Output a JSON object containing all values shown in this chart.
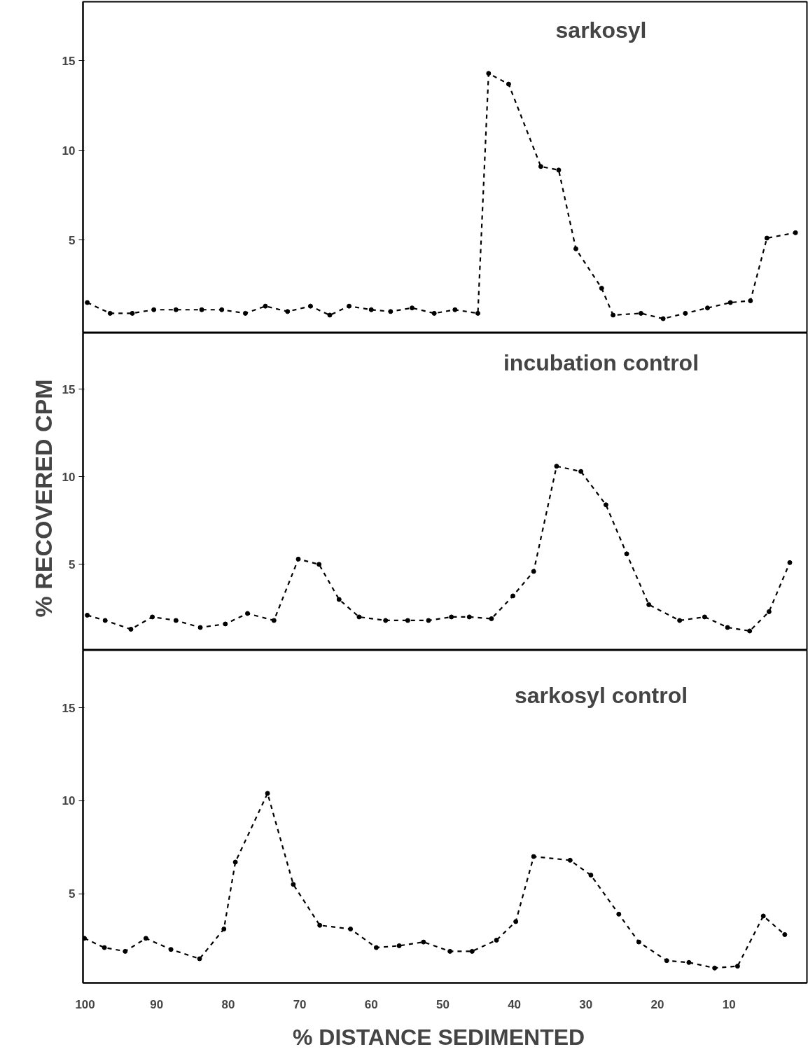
{
  "chart_data": [
    {
      "type": "line",
      "title": "sarkosyl",
      "xlim": [
        100.3,
        -0.9
      ],
      "ylim": [
        -0.2,
        18.3
      ],
      "yticks": [
        5,
        10,
        15
      ],
      "tick_labels": "y",
      "marker": "circle",
      "line_style": "dashed",
      "series": [
        {
          "color": "#000000",
          "x": [
            99.7,
            96.5,
            93.4,
            90.4,
            87.3,
            83.7,
            80.9,
            77.6,
            74.8,
            71.7,
            68.5,
            65.8,
            63.1,
            60.0,
            57.3,
            54.3,
            51.2,
            48.3,
            45.1,
            43.6,
            40.8,
            36.3,
            33.8,
            31.4,
            27.8,
            26.2,
            22.3,
            19.2,
            16.1,
            13.0,
            9.8,
            7.0,
            4.7,
            0.7
          ],
          "values": [
            1.5,
            0.9,
            0.9,
            1.1,
            1.1,
            1.1,
            1.1,
            0.9,
            1.3,
            1.0,
            1.3,
            0.8,
            1.3,
            1.1,
            1.0,
            1.2,
            0.9,
            1.1,
            0.9,
            14.3,
            13.7,
            9.1,
            8.9,
            4.5,
            2.3,
            0.8,
            0.9,
            0.6,
            0.9,
            1.2,
            1.5,
            1.6,
            5.1,
            5.4
          ]
        }
      ]
    },
    {
      "type": "line",
      "title": "incubation control",
      "ylabel": "%  RECOVERED  CPM",
      "xlim": [
        100.3,
        -0.9
      ],
      "ylim": [
        0.1,
        18.2
      ],
      "yticks": [
        5,
        10,
        15
      ],
      "tick_labels": "y",
      "marker": "circle",
      "line_style": "dashed",
      "series": [
        {
          "color": "#000000",
          "x": [
            99.7,
            97.2,
            93.6,
            90.6,
            87.3,
            83.9,
            80.4,
            77.3,
            73.6,
            70.2,
            67.3,
            64.5,
            61.7,
            58.0,
            54.9,
            52.0,
            48.8,
            46.3,
            43.2,
            40.2,
            37.3,
            34.1,
            30.7,
            27.2,
            24.3,
            21.2,
            16.9,
            13.4,
            10.2,
            7.1,
            4.4,
            1.5
          ],
          "values": [
            2.1,
            1.8,
            1.3,
            2.0,
            1.8,
            1.4,
            1.6,
            2.2,
            1.8,
            5.3,
            5.0,
            3.0,
            2.0,
            1.8,
            1.8,
            1.8,
            2.0,
            2.0,
            1.9,
            3.2,
            4.6,
            10.6,
            10.3,
            8.4,
            5.6,
            2.7,
            1.8,
            2.0,
            1.4,
            1.2,
            2.3,
            5.1
          ]
        }
      ]
    },
    {
      "type": "line",
      "title": "sarkosyl control",
      "xlabel": "%  DISTANCE  SEDIMENTED",
      "xlim": [
        100.3,
        -0.9
      ],
      "xticks": [
        100,
        90,
        80,
        70,
        60,
        50,
        40,
        30,
        20,
        10
      ],
      "ylim": [
        0.2,
        18.1
      ],
      "yticks": [
        5,
        10,
        15
      ],
      "marker": "circle",
      "line_style": "dashed",
      "series": [
        {
          "color": "#000000",
          "x": [
            100.1,
            97.3,
            94.4,
            91.5,
            88.0,
            84.0,
            80.6,
            79.0,
            74.5,
            70.9,
            67.2,
            62.9,
            59.3,
            56.1,
            52.7,
            49.0,
            45.9,
            42.5,
            39.8,
            37.3,
            32.2,
            29.3,
            25.4,
            22.6,
            18.7,
            15.6,
            12.0,
            8.8,
            5.2,
            2.2
          ],
          "values": [
            2.6,
            2.1,
            1.9,
            2.6,
            2.0,
            1.5,
            3.1,
            6.7,
            10.4,
            5.5,
            3.3,
            3.1,
            2.1,
            2.2,
            2.4,
            1.9,
            1.9,
            2.5,
            3.5,
            7.0,
            6.8,
            6.0,
            3.9,
            2.4,
            1.4,
            1.3,
            1.0,
            1.1,
            3.8,
            2.8
          ]
        }
      ]
    }
  ]
}
